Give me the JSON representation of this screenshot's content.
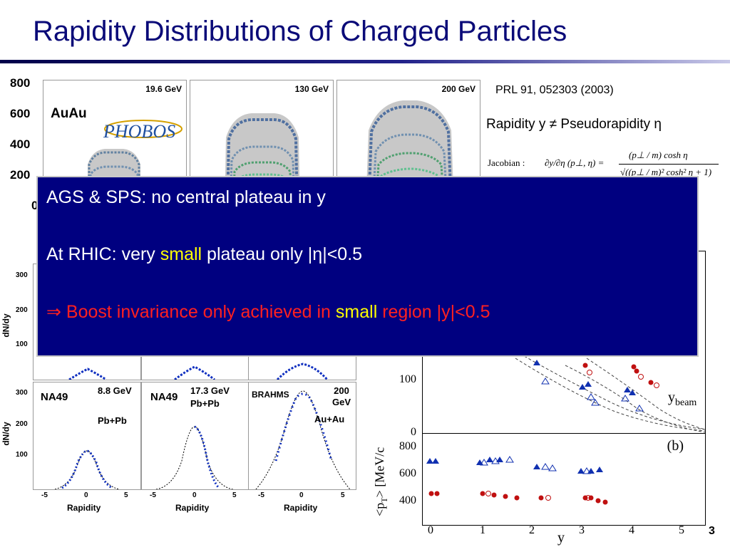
{
  "slide": {
    "title": "Rapidity Distributions of Charged Particles",
    "page_number": "3"
  },
  "phobos": {
    "y_ticks": [
      "800",
      "600",
      "400",
      "200",
      "0"
    ],
    "system_label": "AuAu",
    "logo_text": "PHOBOS",
    "energies": [
      "19.6 GeV",
      "130 GeV",
      "200 GeV"
    ]
  },
  "reference": "PRL 91, 052303 (2003)",
  "rapidity_note": {
    "prefix": "Rapidity y",
    "symbol": "≠",
    "suffix": "Pseudorapidity η"
  },
  "jacobian": {
    "label": "Jacobian :",
    "lhs": "∂y/∂η (p⊥, η) =",
    "numerator": "(p⊥ / m) cosh η",
    "denominator": "√((p⊥ / m)² cosh² η + 1)"
  },
  "left_panels": {
    "y_label": "dN/dy",
    "x_label": "Rapidity",
    "top_y_ticks": [
      "300",
      "200",
      "100"
    ],
    "bottom_y_ticks": [
      "300",
      "200",
      "100"
    ],
    "x_ticks": [
      "-5",
      "0",
      "5"
    ],
    "bottom": [
      {
        "experiment": "NA49",
        "energy": "8.8 GeV",
        "system": "Pb+Pb"
      },
      {
        "experiment": "NA49",
        "energy": "17.3 GeV",
        "system": "Pb+Pb"
      },
      {
        "experiment": "BRAHMS",
        "energy": "200 GeV",
        "system": "Au+Au"
      }
    ]
  },
  "right_plot": {
    "upper": {
      "y_ticks": [
        "100",
        "0"
      ],
      "beam_label": "y",
      "beam_sub": "beam"
    },
    "lower": {
      "panel_label": "(b)",
      "y_label": "<p",
      "y_label_sub": "T",
      "y_label_rest": "> [MeV/c",
      "y_ticks": [
        "800",
        "600",
        "400"
      ],
      "x_ticks": [
        "0",
        "1",
        "2",
        "3",
        "4",
        "5"
      ],
      "x_label": "y"
    }
  },
  "overlay": {
    "line1": "AGS & SPS: no central plateau in y",
    "line2_a": "At RHIC: very ",
    "line2_b": "small",
    "line2_c": " plateau only |η|<0.5",
    "line3_arrow": "⇒",
    "line3_a": " Boost invariance only achieved in ",
    "line3_b": "small",
    "line3_c": " region |y|<0.5"
  },
  "colors": {
    "title": "#0a0a78",
    "overlay_bg": "#000080",
    "highlight": "#ffff00",
    "conclusion": "#ff2020",
    "blue_series": "#1030b0",
    "red_series": "#c01010"
  }
}
